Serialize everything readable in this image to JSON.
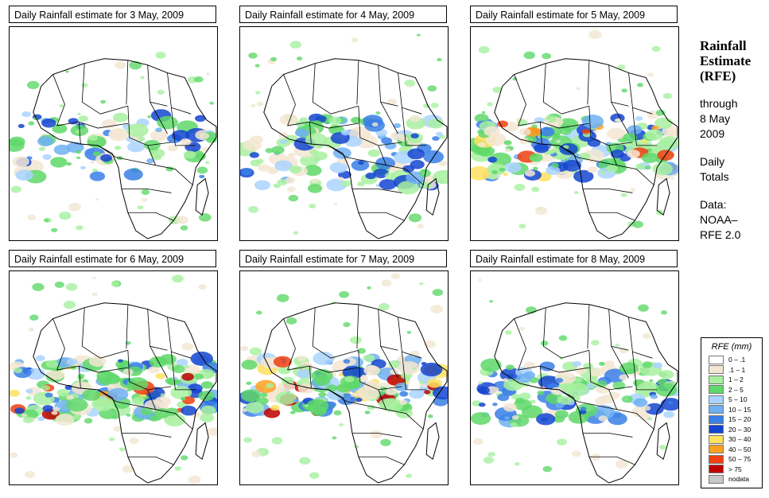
{
  "panels": [
    {
      "title": "Daily Rainfall estimate for  3 May, 2009"
    },
    {
      "title": "Daily Rainfall estimate for  4 May, 2009"
    },
    {
      "title": "Daily Rainfall estimate for  5 May, 2009"
    },
    {
      "title": "Daily Rainfall estimate for  6 May, 2009"
    },
    {
      "title": "Daily Rainfall estimate for  7 May, 2009"
    },
    {
      "title": "Daily Rainfall estimate for  8 May, 2009"
    }
  ],
  "side": {
    "title_line1": "Rainfall",
    "title_line2": "Estimate",
    "title_line3": "(RFE)",
    "through": "through",
    "date_line1": "8 May",
    "date_line2": "2009",
    "daily_line1": "Daily",
    "daily_line2": "Totals",
    "data_line1": "Data:",
    "data_line2": "NOAA–",
    "data_line3": "RFE 2.0"
  },
  "legend": {
    "title": "RFE (mm)",
    "items": [
      {
        "label": "0 – .1",
        "color": "#ffffff"
      },
      {
        "label": ".1 – 1",
        "color": "#f3e6d2"
      },
      {
        "label": "1 – 2",
        "color": "#a8f0a0"
      },
      {
        "label": "2 – 5",
        "color": "#5fd86a"
      },
      {
        "label": "5 – 10",
        "color": "#aad4ff"
      },
      {
        "label": "10 – 15",
        "color": "#6fb0f2"
      },
      {
        "label": "15 – 20",
        "color": "#3a7fe6"
      },
      {
        "label": "20 – 30",
        "color": "#1445d0"
      },
      {
        "label": "30 – 40",
        "color": "#ffe060"
      },
      {
        "label": "40 – 50",
        "color": "#ffa020"
      },
      {
        "label": "50 – 75",
        "color": "#f04010"
      },
      {
        "label": "> 75",
        "color": "#c00000"
      },
      {
        "label": "nodata",
        "color": "#c8c8c8"
      }
    ]
  }
}
